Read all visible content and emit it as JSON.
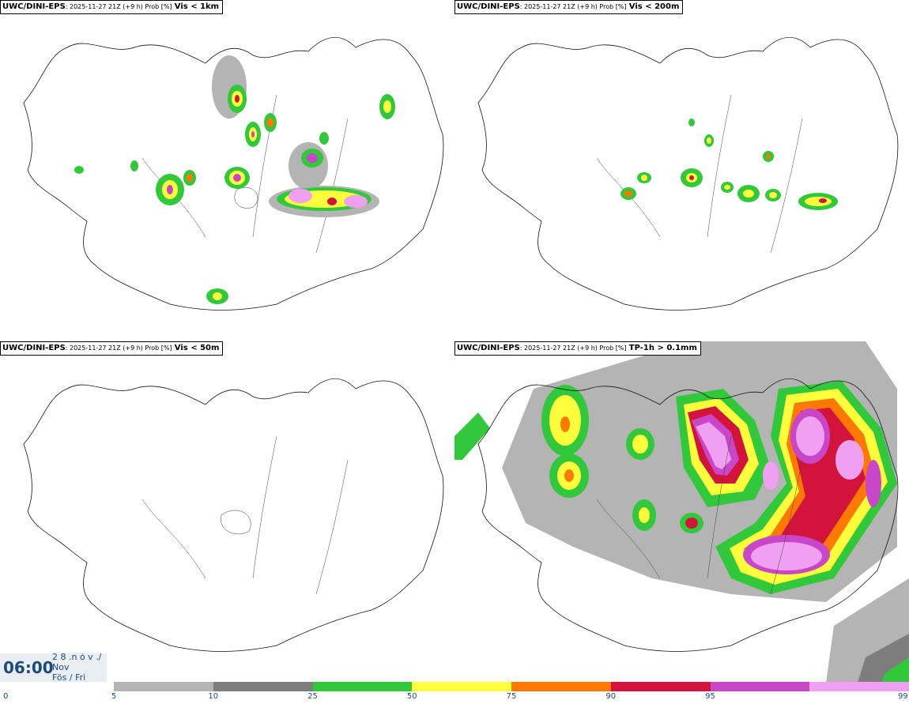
{
  "panels": [
    {
      "model": "UWC/DINI-EPS",
      "run": ": 2025-11-27 21Z (+9 h) Prob [%]",
      "variable": "Vis < 1km"
    },
    {
      "model": "UWC/DINI-EPS",
      "run": ": 2025-11-27 21Z (+9 h) Prob [%]",
      "variable": "Vis < 200m"
    },
    {
      "model": "UWC/DINI-EPS",
      "run": ": 2025-11-27 21Z (+9 h) Prob [%]",
      "variable": "Vis < 50m"
    },
    {
      "model": "UWC/DINI-EPS",
      "run": ": 2025-11-27 21Z (+9 h) Prob [%]",
      "variable": "TP-1h > 0.1mm"
    }
  ],
  "clock": {
    "time": "06:00",
    "date_line1": "2 8 .n ó v ./",
    "date_line2": "Nov",
    "date_line3": "Fös / Fri"
  },
  "colorbar": {
    "ticks": [
      "0",
      "5",
      "10",
      "25",
      "50",
      "75",
      "90",
      "95",
      "99"
    ],
    "colors": [
      "#b4b4b4",
      "#7d7d7d",
      "#32c83c",
      "#ffff3c",
      "#ff7800",
      "#d2143c",
      "#c846c8",
      "#f0a0f0"
    ]
  }
}
